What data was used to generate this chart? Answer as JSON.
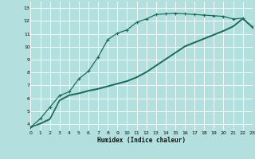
{
  "background_color": "#b3dfdf",
  "grid_color": "#ffffff",
  "line_color": "#1a6b5a",
  "xlabel": "Humidex (Indice chaleur)",
  "xlim": [
    0,
    23
  ],
  "ylim": [
    3.5,
    13.5
  ],
  "xticks": [
    0,
    1,
    2,
    3,
    4,
    5,
    6,
    7,
    8,
    9,
    10,
    11,
    12,
    13,
    14,
    15,
    16,
    17,
    18,
    19,
    20,
    21,
    22,
    23
  ],
  "yticks": [
    4,
    5,
    6,
    7,
    8,
    9,
    10,
    11,
    12,
    13
  ],
  "curve1_x": [
    0,
    1,
    2,
    3,
    4,
    5,
    6,
    7,
    8,
    9,
    10,
    11,
    12,
    13,
    14,
    15,
    16,
    17,
    18,
    19,
    20,
    21,
    22,
    23
  ],
  "curve1_y": [
    3.75,
    4.4,
    5.3,
    6.2,
    6.5,
    7.5,
    8.1,
    9.2,
    10.55,
    11.05,
    11.3,
    11.9,
    12.15,
    12.5,
    12.55,
    12.6,
    12.55,
    12.5,
    12.45,
    12.4,
    12.35,
    12.15,
    12.2,
    11.5
  ],
  "curve2_x": [
    0,
    1,
    2,
    3,
    4,
    5,
    6,
    7,
    8,
    9,
    10,
    11,
    12,
    13,
    14,
    15,
    16,
    17,
    18,
    19,
    20,
    21,
    22,
    23
  ],
  "curve2_y": [
    3.75,
    4.0,
    4.35,
    5.8,
    6.2,
    6.35,
    6.55,
    6.7,
    6.9,
    7.1,
    7.3,
    7.6,
    8.0,
    8.5,
    9.0,
    9.5,
    10.0,
    10.3,
    10.6,
    10.9,
    11.2,
    11.55,
    12.15,
    11.5
  ],
  "curve3_x": [
    0,
    1,
    2,
    3,
    4,
    5,
    6,
    7,
    8,
    9,
    10,
    11,
    12,
    13,
    14,
    15,
    16,
    17,
    18,
    19,
    20,
    21,
    22,
    23
  ],
  "curve3_y": [
    3.75,
    4.05,
    4.4,
    5.85,
    6.25,
    6.4,
    6.6,
    6.75,
    6.95,
    7.15,
    7.35,
    7.65,
    8.05,
    8.55,
    9.05,
    9.55,
    10.05,
    10.35,
    10.65,
    10.95,
    11.25,
    11.6,
    12.2,
    11.55
  ]
}
